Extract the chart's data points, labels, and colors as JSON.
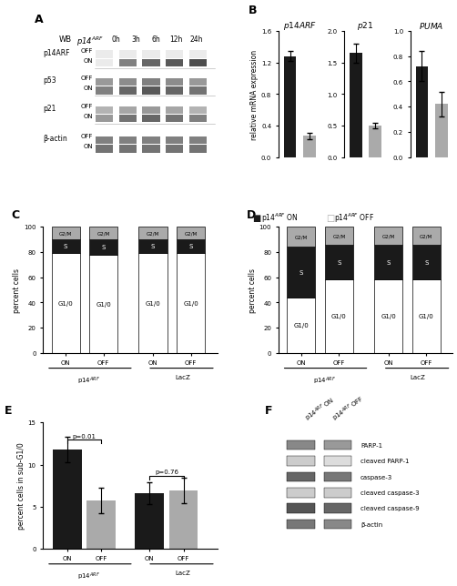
{
  "panel_labels": [
    "A",
    "B",
    "C",
    "D",
    "E",
    "F"
  ],
  "panel_B": {
    "genes": [
      "p14ARF",
      "p21",
      "PUMA"
    ],
    "ylims": [
      1.6,
      2.0,
      1.0
    ],
    "yticks": [
      [
        0,
        0.4,
        0.8,
        1.2,
        1.6
      ],
      [
        0,
        0.5,
        1.0,
        1.5,
        2.0
      ],
      [
        0,
        0.2,
        0.4,
        0.6,
        0.8,
        1.0
      ]
    ],
    "on_values": [
      1.28,
      1.65,
      0.72
    ],
    "off_values": [
      0.27,
      0.5,
      0.42
    ],
    "on_errors": [
      0.06,
      0.15,
      0.12
    ],
    "off_errors": [
      0.04,
      0.04,
      0.1
    ],
    "ylabel": "relative mRNA expression",
    "color_on": "#1a1a1a",
    "color_off": "#aaaaaa"
  },
  "panel_C": {
    "G1_values": [
      79,
      78,
      79,
      79
    ],
    "S_values": [
      11,
      12,
      11,
      11
    ],
    "G2M_values": [
      10,
      10,
      10,
      10
    ],
    "ylabel": "percent cells",
    "color_G1": "#ffffff",
    "color_S": "#1a1a1a",
    "color_G2M": "#aaaaaa"
  },
  "panel_D": {
    "G1_values": [
      44,
      58,
      58,
      58
    ],
    "S_values": [
      40,
      28,
      28,
      28
    ],
    "G2M_values": [
      16,
      14,
      14,
      14
    ],
    "ylabel": "percent cells",
    "color_G1": "#ffffff",
    "color_S": "#1a1a1a",
    "color_G2M": "#aaaaaa"
  },
  "panel_E": {
    "values": [
      11.8,
      5.7,
      6.6,
      6.9
    ],
    "errors": [
      1.5,
      1.5,
      1.3,
      1.5
    ],
    "ylabel": "percent cells in sub-G1/0",
    "ylim": [
      0,
      15
    ],
    "yticks": [
      0,
      5,
      10,
      15
    ],
    "color_on": "#1a1a1a",
    "color_off": "#aaaaaa"
  },
  "panel_F": {
    "labels": [
      "PARP-1",
      "cleaved PARP-1",
      "caspase-3",
      "cleaved caspase-3",
      "cleaved caspase-9",
      "β-actin"
    ],
    "band_colors_on": [
      "#888888",
      "#cccccc",
      "#666666",
      "#cccccc",
      "#555555",
      "#777777"
    ],
    "band_colors_off": [
      "#999999",
      "#dddddd",
      "#777777",
      "#cccccc",
      "#666666",
      "#888888"
    ]
  },
  "panel_A": {
    "proteins": [
      "p14ARF",
      "p53",
      "p21",
      "β-actin"
    ],
    "timepoints": [
      "0h",
      "3h",
      "6h",
      "12h",
      "24h"
    ]
  },
  "bg_color": "#ffffff",
  "font_size": 7,
  "panel_label_size": 9
}
